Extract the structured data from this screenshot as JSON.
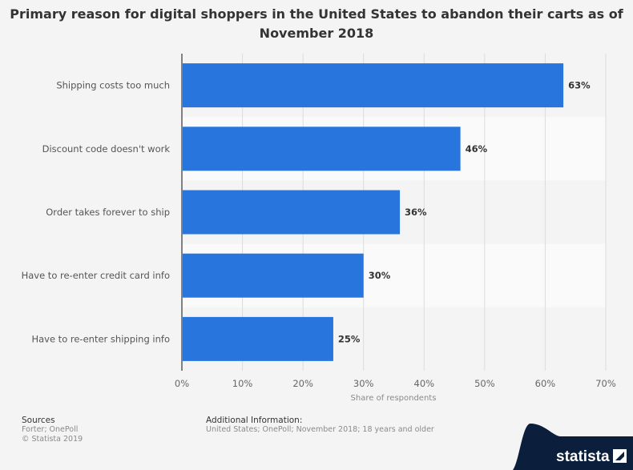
{
  "chart_data": {
    "type": "bar",
    "orientation": "horizontal",
    "title": "Primary reason for digital shoppers in the United States to abandon their carts as of November 2018",
    "categories": [
      "Shipping costs too much",
      "Discount code doesn't work",
      "Order takes forever to ship",
      "Have to re-enter credit card info",
      "Have to re-enter shipping info"
    ],
    "values": [
      63,
      46,
      36,
      30,
      25
    ],
    "value_labels": [
      "63%",
      "46%",
      "36%",
      "30%",
      "25%"
    ],
    "xlabel": "Share of respondents",
    "ylabel": "",
    "xlim": [
      0,
      70
    ],
    "xticks": [
      0,
      10,
      20,
      30,
      40,
      50,
      60,
      70
    ],
    "xtick_labels": [
      "0%",
      "10%",
      "20%",
      "30%",
      "40%",
      "50%",
      "60%",
      "70%"
    ],
    "grid": true,
    "bar_color": "#2876dd"
  },
  "footer": {
    "sources_heading": "Sources",
    "sources_line1": "Forter; OnePoll",
    "sources_line2": "© Statista 2019",
    "additional_heading": "Additional Information:",
    "additional_text": "United States; OnePoll; November 2018; 18 years and older"
  },
  "brand": {
    "name": "statista",
    "color": "#0b1e3c"
  }
}
